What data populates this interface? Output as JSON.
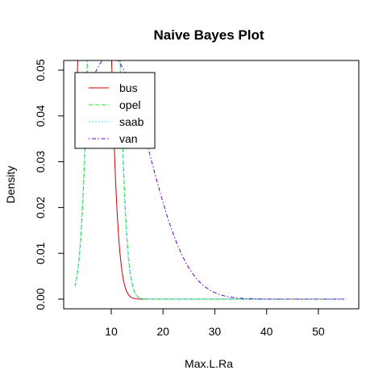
{
  "chart_data": {
    "type": "line",
    "title": "Naive Bayes Plot",
    "xlabel": "Max.L.Ra",
    "ylabel": "Density",
    "xlim": [
      3,
      55
    ],
    "ylim": [
      0,
      0.05
    ],
    "xticks": [
      10,
      20,
      30,
      40,
      50
    ],
    "yticks": [
      0.0,
      0.01,
      0.02,
      0.03,
      0.04,
      0.05
    ],
    "ytick_labels": [
      "0.00",
      "0.01",
      "0.02",
      "0.03",
      "0.04",
      "0.05"
    ],
    "legend_position": "top-left",
    "grid": false,
    "series": [
      {
        "name": "bus",
        "color": "#CC0000",
        "dash": "solid",
        "mean": 6.8,
        "sd": 2.0
      },
      {
        "name": "opel",
        "color": "#33DD33",
        "dash": "dashed",
        "mean": 8.6,
        "sd": 1.9
      },
      {
        "name": "saab",
        "color": "#33CCDD",
        "dash": "dotted",
        "mean": 8.5,
        "sd": 1.9
      },
      {
        "name": "van",
        "color": "#6600CC",
        "dash": "dotdash",
        "mean": 9.8,
        "sd": 7.5
      }
    ]
  }
}
